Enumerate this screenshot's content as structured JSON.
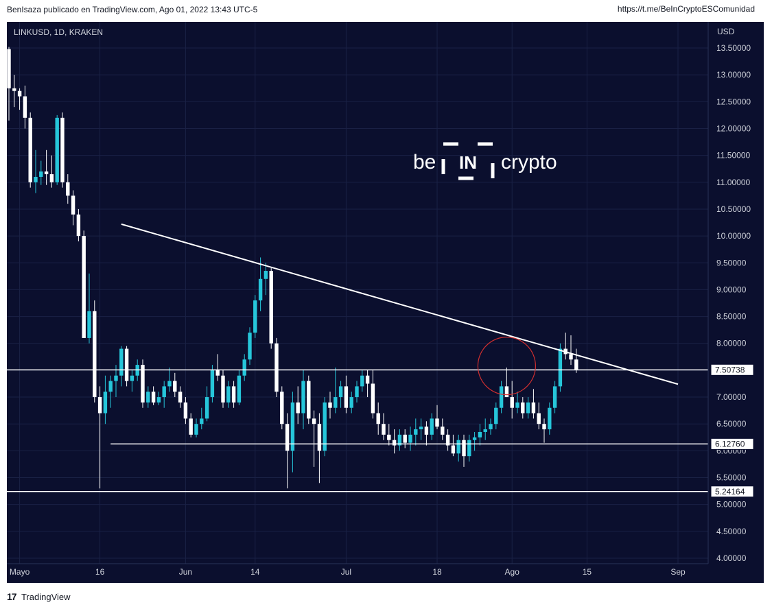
{
  "header": {
    "publisher": "BenIsaza publicado en TradingView.com, Ago 01, 2022 13:43 UTC-5",
    "link": "https://t.me/BeInCryptoESComunidad"
  },
  "footer": {
    "brand": "TradingView"
  },
  "watermark": {
    "left": "be",
    "middle": "IN",
    "right": "crypto"
  },
  "colors": {
    "background": "#0b0f2e",
    "up": "#26c6da",
    "down": "#ffffff",
    "lines": "#ffffff",
    "circle": "#d32f2f"
  },
  "chart_data": {
    "type": "candlestick",
    "symbol_label": "LINKUSD, 1D, KRAKEN",
    "currency": "USD",
    "x_ticks": [
      "Mayo",
      "16",
      "Jun",
      "14",
      "Jul",
      "18",
      "Ago",
      "15",
      "Sep"
    ],
    "y_ticks": [
      "13.50000",
      "13.00000",
      "12.50000",
      "12.00000",
      "11.50000",
      "11.00000",
      "10.50000",
      "10.00000",
      "9.50000",
      "9.00000",
      "8.50000",
      "8.00000",
      "7.50000",
      "7.00000",
      "6.50000",
      "6.00000",
      "5.50000",
      "5.00000",
      "4.50000",
      "4.00000"
    ],
    "ylim": [
      3.95,
      13.9
    ],
    "first_candle_date": "2022-04-29",
    "candles": [
      [
        13.48,
        13.52,
        12.15,
        12.75
      ],
      [
        12.75,
        13.0,
        12.4,
        12.7
      ],
      [
        12.7,
        12.75,
        12.35,
        12.6
      ],
      [
        12.6,
        12.8,
        12.0,
        12.2
      ],
      [
        12.2,
        12.3,
        10.9,
        11.0
      ],
      [
        11.0,
        11.6,
        10.8,
        11.1
      ],
      [
        11.1,
        11.4,
        10.95,
        11.2
      ],
      [
        11.2,
        11.6,
        10.95,
        11.15
      ],
      [
        11.15,
        11.5,
        10.9,
        11.0
      ],
      [
        11.0,
        12.25,
        10.95,
        12.2
      ],
      [
        12.2,
        12.3,
        10.9,
        11.0
      ],
      [
        11.0,
        11.15,
        10.6,
        10.75
      ],
      [
        10.75,
        10.85,
        10.2,
        10.4
      ],
      [
        10.4,
        10.5,
        9.9,
        10.0
      ],
      [
        10.0,
        10.1,
        8.1,
        8.1
      ],
      [
        8.1,
        9.3,
        8.0,
        8.6
      ],
      [
        8.6,
        8.8,
        6.9,
        7.0
      ],
      [
        7.0,
        7.2,
        5.3,
        6.7
      ],
      [
        6.7,
        7.4,
        6.5,
        7.1
      ],
      [
        7.1,
        7.4,
        6.8,
        7.3
      ],
      [
        7.3,
        7.6,
        7.0,
        7.4
      ],
      [
        7.4,
        7.95,
        7.2,
        7.9
      ],
      [
        7.9,
        7.95,
        7.2,
        7.3
      ],
      [
        7.3,
        7.5,
        7.1,
        7.4
      ],
      [
        7.4,
        7.7,
        7.3,
        7.6
      ],
      [
        7.6,
        7.7,
        6.8,
        6.9
      ],
      [
        6.9,
        7.2,
        6.8,
        7.1
      ],
      [
        7.1,
        7.2,
        6.85,
        6.9
      ],
      [
        6.9,
        7.1,
        6.85,
        7.0
      ],
      [
        7.0,
        7.3,
        6.8,
        7.2
      ],
      [
        7.2,
        7.55,
        7.1,
        7.3
      ],
      [
        7.3,
        7.45,
        7.0,
        7.1
      ],
      [
        7.1,
        7.2,
        6.8,
        6.9
      ],
      [
        6.9,
        7.0,
        6.5,
        6.6
      ],
      [
        6.6,
        6.7,
        6.25,
        6.3
      ],
      [
        6.3,
        6.6,
        6.25,
        6.5
      ],
      [
        6.5,
        6.8,
        6.4,
        6.6
      ],
      [
        6.6,
        7.2,
        6.55,
        7.0
      ],
      [
        7.0,
        7.6,
        6.9,
        7.5
      ],
      [
        7.5,
        7.8,
        7.3,
        7.4
      ],
      [
        7.4,
        7.5,
        6.8,
        6.9
      ],
      [
        6.9,
        7.3,
        6.8,
        7.2
      ],
      [
        7.2,
        7.3,
        6.8,
        6.9
      ],
      [
        6.9,
        7.5,
        6.85,
        7.4
      ],
      [
        7.4,
        7.8,
        7.3,
        7.7
      ],
      [
        7.7,
        8.3,
        7.6,
        8.2
      ],
      [
        8.2,
        8.9,
        8.1,
        8.8
      ],
      [
        8.8,
        9.6,
        8.6,
        9.2
      ],
      [
        9.2,
        9.5,
        8.9,
        9.35
      ],
      [
        9.35,
        9.4,
        7.9,
        8.0
      ],
      [
        8.0,
        8.1,
        7.0,
        7.1
      ],
      [
        7.1,
        7.2,
        6.4,
        6.5
      ],
      [
        6.5,
        6.7,
        5.3,
        6.0
      ],
      [
        6.0,
        7.1,
        5.6,
        6.9
      ],
      [
        6.9,
        7.2,
        6.5,
        6.7
      ],
      [
        6.7,
        7.5,
        6.4,
        7.3
      ],
      [
        7.3,
        7.4,
        6.5,
        6.6
      ],
      [
        6.6,
        6.75,
        5.7,
        6.5
      ],
      [
        6.5,
        6.7,
        5.4,
        6.0
      ],
      [
        6.0,
        7.0,
        5.9,
        6.9
      ],
      [
        6.9,
        7.1,
        6.6,
        6.8
      ],
      [
        6.8,
        7.55,
        6.7,
        7.0
      ],
      [
        7.0,
        7.3,
        6.8,
        7.2
      ],
      [
        7.2,
        7.4,
        6.7,
        6.8
      ],
      [
        6.8,
        7.1,
        6.7,
        7.0
      ],
      [
        7.0,
        7.3,
        6.9,
        7.2
      ],
      [
        7.2,
        7.5,
        7.1,
        7.4
      ],
      [
        7.4,
        7.5,
        7.0,
        7.25
      ],
      [
        7.25,
        7.5,
        6.6,
        6.7
      ],
      [
        6.7,
        6.9,
        6.3,
        6.5
      ],
      [
        6.5,
        6.7,
        6.2,
        6.3
      ],
      [
        6.3,
        6.5,
        6.1,
        6.2
      ],
      [
        6.2,
        6.4,
        5.95,
        6.1
      ],
      [
        6.1,
        6.4,
        6.0,
        6.3
      ],
      [
        6.3,
        6.4,
        6.05,
        6.15
      ],
      [
        6.15,
        6.45,
        6.0,
        6.3
      ],
      [
        6.3,
        6.6,
        6.1,
        6.4
      ],
      [
        6.4,
        6.6,
        6.2,
        6.45
      ],
      [
        6.45,
        6.55,
        6.1,
        6.3
      ],
      [
        6.3,
        6.7,
        6.2,
        6.6
      ],
      [
        6.6,
        6.85,
        6.4,
        6.45
      ],
      [
        6.45,
        6.6,
        6.2,
        6.3
      ],
      [
        6.3,
        6.4,
        6.0,
        6.1
      ],
      [
        6.1,
        6.3,
        5.9,
        5.95
      ],
      [
        5.95,
        6.3,
        5.8,
        6.2
      ],
      [
        6.2,
        6.3,
        5.7,
        5.9
      ],
      [
        5.9,
        6.3,
        5.8,
        6.2
      ],
      [
        6.2,
        6.35,
        6.0,
        6.25
      ],
      [
        6.25,
        6.5,
        6.1,
        6.35
      ],
      [
        6.35,
        6.6,
        6.2,
        6.4
      ],
      [
        6.4,
        6.6,
        6.3,
        6.5
      ],
      [
        6.5,
        6.9,
        6.4,
        6.8
      ],
      [
        6.8,
        7.3,
        6.7,
        7.2
      ],
      [
        7.2,
        7.55,
        7.0,
        7.0
      ],
      [
        7.0,
        7.3,
        6.6,
        6.8
      ],
      [
        6.8,
        7.1,
        6.7,
        6.9
      ],
      [
        6.9,
        7.0,
        6.6,
        6.7
      ],
      [
        6.7,
        7.0,
        6.6,
        6.9
      ],
      [
        6.9,
        7.15,
        6.6,
        6.7
      ],
      [
        6.7,
        6.9,
        6.4,
        6.5
      ],
      [
        6.5,
        6.6,
        6.15,
        6.4
      ],
      [
        6.4,
        6.9,
        6.3,
        6.8
      ],
      [
        6.8,
        7.3,
        6.7,
        7.2
      ],
      [
        7.2,
        8.0,
        7.1,
        7.9
      ],
      [
        7.9,
        8.2,
        7.7,
        7.8
      ],
      [
        7.8,
        8.15,
        7.6,
        7.7
      ],
      [
        7.7,
        7.9,
        7.45,
        7.51
      ]
    ],
    "levels": [
      7.50738,
      6.1276,
      5.24164
    ],
    "level_labels": [
      "7.50738",
      "6.12760",
      "5.24164"
    ],
    "trendline": {
      "from": [
        "2022-05-20",
        10.22
      ],
      "to": [
        "2022-09-01",
        7.24
      ]
    },
    "circle_center": [
      "2022-07-31",
      7.58
    ]
  }
}
